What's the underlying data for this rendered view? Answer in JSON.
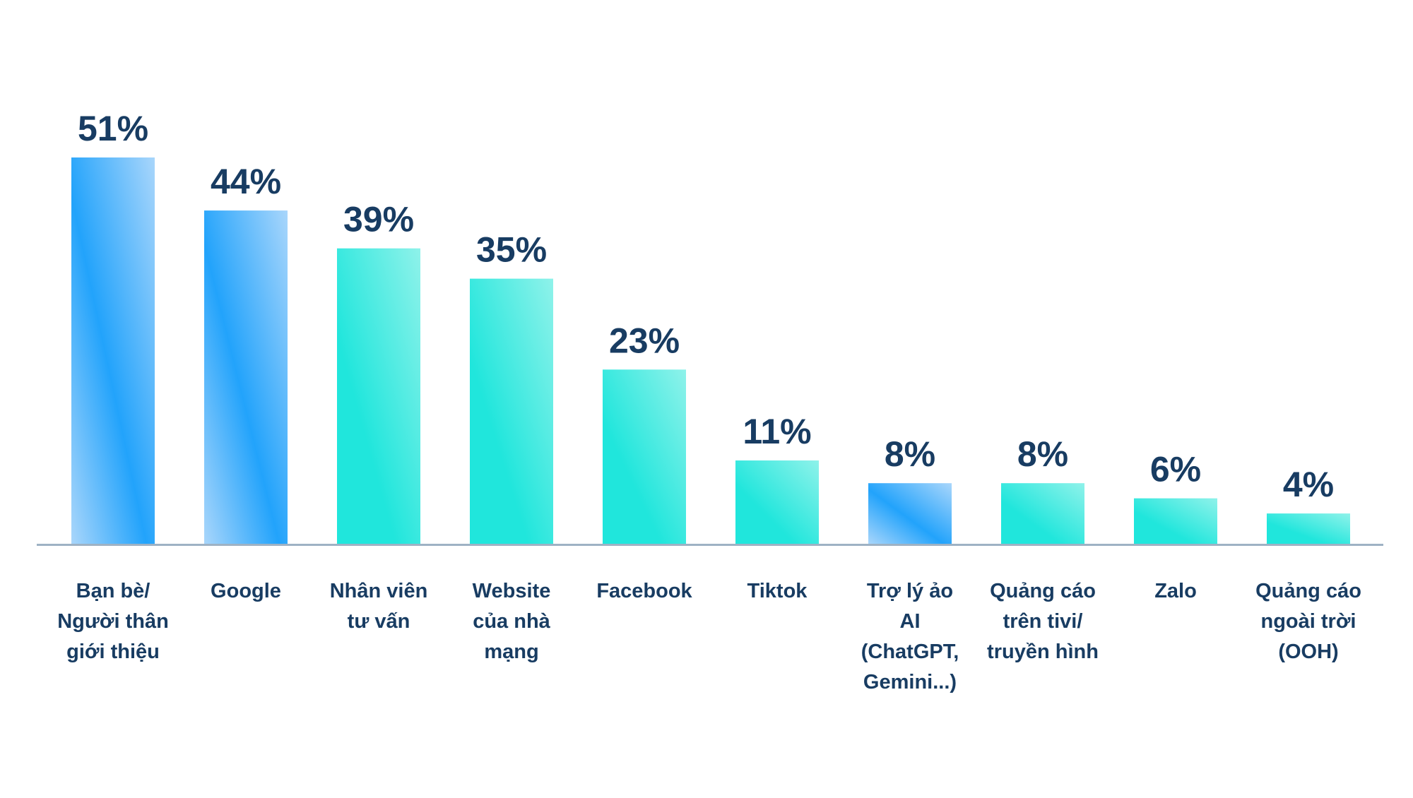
{
  "chart_data": {
    "type": "bar",
    "title": "",
    "xlabel": "",
    "ylabel": "",
    "ylim": [
      0,
      51
    ],
    "grid": false,
    "legend": "none",
    "value_suffix": "%",
    "categories": [
      [
        "Bạn bè/",
        "Người thân",
        "giới thiệu"
      ],
      [
        "Google"
      ],
      [
        "Nhân viên",
        "tư vấn"
      ],
      [
        "Website",
        "của nhà",
        "mạng"
      ],
      [
        "Facebook"
      ],
      [
        "Tiktok"
      ],
      [
        "Trợ lý ảo",
        "AI",
        "(ChatGPT,",
        "Gemini...)"
      ],
      [
        "Quảng cáo",
        "trên tivi/",
        "truyền hình"
      ],
      [
        "Zalo"
      ],
      [
        "Quảng cáo",
        "ngoài trời",
        "(OOH)"
      ]
    ],
    "values": [
      51,
      44,
      39,
      35,
      23,
      11,
      8,
      8,
      6,
      4
    ],
    "data_labels": [
      "51%",
      "44%",
      "39%",
      "35%",
      "23%",
      "11%",
      "8%",
      "8%",
      "6%",
      "4%"
    ],
    "bar_colors": [
      "blue",
      "blue",
      "teal",
      "teal",
      "teal",
      "teal",
      "blue",
      "teal",
      "teal",
      "teal"
    ]
  },
  "colors": {
    "blue_light": "#a9d6fb",
    "blue_dark": "#22a3fb",
    "teal_light": "#8ff2ea",
    "teal_dark": "#20e6dc",
    "label": "#183c62",
    "axis": "#9eb2c4"
  }
}
